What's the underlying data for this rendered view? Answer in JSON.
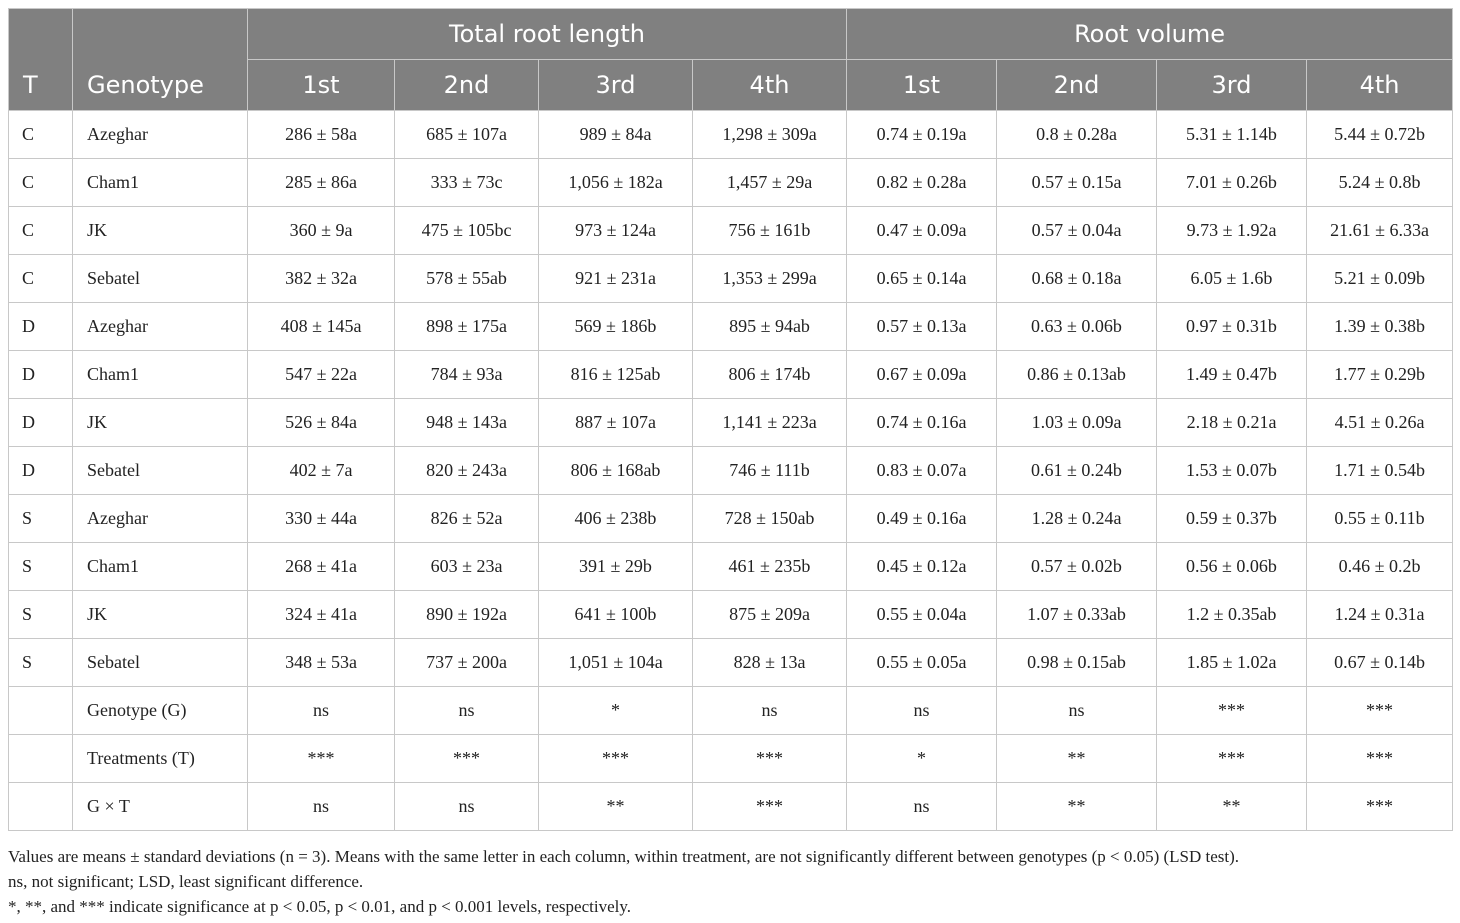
{
  "header": {
    "t_label": "T",
    "genotype_label": "Genotype",
    "group_total_root_length": "Total root length",
    "group_root_volume": "Root volume",
    "sub_labels": [
      "1st",
      "2nd",
      "3rd",
      "4th",
      "1st",
      "2nd",
      "3rd",
      "4th"
    ]
  },
  "rows": [
    {
      "t": "C",
      "genotype": "Azeghar",
      "cells": [
        "286 ± 58a",
        "685 ± 107a",
        "989 ± 84a",
        "1,298 ± 309a",
        "0.74 ± 0.19a",
        "0.8 ± 0.28a",
        "5.31 ± 1.14b",
        "5.44 ± 0.72b"
      ]
    },
    {
      "t": "C",
      "genotype": "Cham1",
      "cells": [
        "285 ± 86a",
        "333 ± 73c",
        "1,056 ± 182a",
        "1,457 ± 29a",
        "0.82 ± 0.28a",
        "0.57 ± 0.15a",
        "7.01 ± 0.26b",
        "5.24 ± 0.8b"
      ]
    },
    {
      "t": "C",
      "genotype": "JK",
      "cells": [
        "360 ± 9a",
        "475 ± 105bc",
        "973 ± 124a",
        "756 ± 161b",
        "0.47 ± 0.09a",
        "0.57 ± 0.04a",
        "9.73 ± 1.92a",
        "21.61 ± 6.33a"
      ]
    },
    {
      "t": "C",
      "genotype": "Sebatel",
      "cells": [
        "382 ± 32a",
        "578 ± 55ab",
        "921 ± 231a",
        "1,353 ± 299a",
        "0.65 ± 0.14a",
        "0.68 ± 0.18a",
        "6.05 ± 1.6b",
        "5.21 ± 0.09b"
      ]
    },
    {
      "t": "D",
      "genotype": "Azeghar",
      "cells": [
        "408 ± 145a",
        "898 ± 175a",
        "569 ± 186b",
        "895 ± 94ab",
        "0.57 ± 0.13a",
        "0.63 ± 0.06b",
        "0.97 ± 0.31b",
        "1.39 ± 0.38b"
      ]
    },
    {
      "t": "D",
      "genotype": "Cham1",
      "cells": [
        "547 ± 22a",
        "784 ± 93a",
        "816 ± 125ab",
        "806 ± 174b",
        "0.67 ± 0.09a",
        "0.86 ± 0.13ab",
        "1.49 ± 0.47b",
        "1.77 ± 0.29b"
      ]
    },
    {
      "t": "D",
      "genotype": "JK",
      "cells": [
        "526 ± 84a",
        "948 ± 143a",
        "887 ± 107a",
        "1,141 ± 223a",
        "0.74 ± 0.16a",
        "1.03 ± 0.09a",
        "2.18 ± 0.21a",
        "4.51 ± 0.26a"
      ]
    },
    {
      "t": "D",
      "genotype": "Sebatel",
      "cells": [
        "402 ± 7a",
        "820 ± 243a",
        "806 ± 168ab",
        "746 ± 111b",
        "0.83 ± 0.07a",
        "0.61 ± 0.24b",
        "1.53 ± 0.07b",
        "1.71 ± 0.54b"
      ]
    },
    {
      "t": "S",
      "genotype": "Azeghar",
      "cells": [
        "330 ± 44a",
        "826 ± 52a",
        "406 ± 238b",
        "728 ± 150ab",
        "0.49 ± 0.16a",
        "1.28 ± 0.24a",
        "0.59 ± 0.37b",
        "0.55 ± 0.11b"
      ]
    },
    {
      "t": "S",
      "genotype": "Cham1",
      "cells": [
        "268 ± 41a",
        "603 ± 23a",
        "391 ± 29b",
        "461 ± 235b",
        "0.45 ± 0.12a",
        "0.57 ± 0.02b",
        "0.56 ± 0.06b",
        "0.46 ± 0.2b"
      ]
    },
    {
      "t": "S",
      "genotype": "JK",
      "cells": [
        "324 ± 41a",
        "890 ± 192a",
        "641 ± 100b",
        "875 ± 209a",
        "0.55 ± 0.04a",
        "1.07 ± 0.33ab",
        "1.2 ± 0.35ab",
        "1.24 ± 0.31a"
      ]
    },
    {
      "t": "S",
      "genotype": "Sebatel",
      "cells": [
        "348 ± 53a",
        "737 ± 200a",
        "1,051 ± 104a",
        "828 ± 13a",
        "0.55 ± 0.05a",
        "0.98 ± 0.15ab",
        "1.85 ± 1.02a",
        "0.67 ± 0.14b"
      ]
    },
    {
      "t": "",
      "genotype": "Genotype (G)",
      "cells": [
        "ns",
        "ns",
        "*",
        "ns",
        "ns",
        "ns",
        "***",
        "***"
      ]
    },
    {
      "t": "",
      "genotype": "Treatments (T)",
      "cells": [
        "***",
        "***",
        "***",
        "***",
        "*",
        "**",
        "***",
        "***"
      ]
    },
    {
      "t": "",
      "genotype": "G × T",
      "cells": [
        "ns",
        "ns",
        "**",
        "***",
        "ns",
        "**",
        "**",
        "***"
      ]
    }
  ],
  "notes": [
    "Values are means ± standard deviations (n = 3). Means with the same letter in each column, within treatment, are not significantly different between genotypes (p < 0.05) (LSD test).",
    "ns, not significant; LSD, least significant difference.",
    "*, **, and *** indicate significance at p < 0.05, p < 0.01, and p < 0.001 levels, respectively."
  ],
  "colors": {
    "header_bg": "#808080",
    "header_text": "#ffffff",
    "grid": "#c8c8c8"
  }
}
